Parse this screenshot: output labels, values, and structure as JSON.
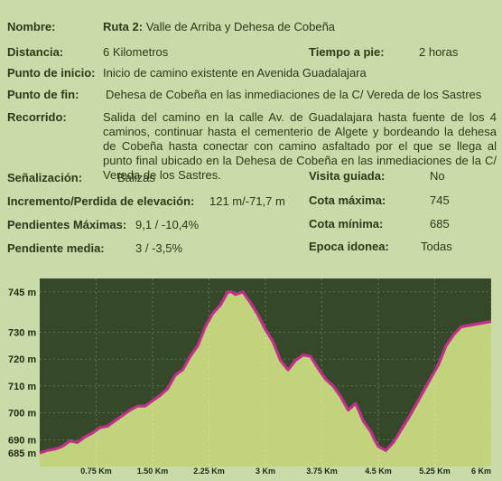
{
  "info": {
    "nombre_label": "Nombre:",
    "nombre_ruta": "Ruta 2:",
    "nombre_valor": "Valle de Arriba y Dehesa de Cobeña",
    "distancia_label": "Distancia:",
    "distancia_valor": "6 Kilometros",
    "tiempo_label": "Tiempo a pie:",
    "tiempo_valor": "2 horas",
    "inicio_label": "Punto de inicio:",
    "inicio_valor": "Inicio de camino existente en Avenida Guadalajara",
    "fin_label": "Punto de fin:",
    "fin_valor": "Dehesa de Cobeña en las inmediaciones de la C/ Vereda de los Sastres",
    "recorrido_label": "Recorrido:",
    "recorrido_valor": "Salida del camino en la calle Av. de Guadalajara hasta fuente de los 4 caminos, continuar hasta el cementerio de Algete y bordeando la dehesa de Cobeña hasta conectar con camino asfaltado por el que se llega al punto final ubicado en la Dehesa de Cobeña en las inmediaciones de la C/ Vereda de los Sastres.",
    "senal_label": "Señalización:",
    "senal_valor": "Balizas",
    "visita_label": "Visita guiada:",
    "visita_valor": "No",
    "incremento_label": "Incremento/Perdida de elevación:",
    "incremento_valor": "121 m/-71,7 m",
    "cota_max_label": "Cota máxima:",
    "cota_max_valor": "745",
    "pend_max_label": "Pendientes Máximas:",
    "pend_max_valor": "9,1 / -10,4%",
    "cota_min_label": "Cota mínima:",
    "cota_min_valor": "685",
    "pend_media_label": "Pendiente media:",
    "pend_media_valor": "3 / -3,5%",
    "epoca_label": "Epoca idonea:",
    "epoca_valor": "Todas"
  },
  "colors": {
    "background": "#c9dba8",
    "chart_dark": "#35482a",
    "chart_fill": "#c1d47c",
    "profile_line": "#c2308c"
  },
  "chart_data": {
    "type": "area",
    "xlabel": "",
    "ylabel": "",
    "x_ticks": [
      "0.75 Km",
      "1.50 Km",
      "2.25 Km",
      "3 Km",
      "3.75 Km",
      "4.5 Km",
      "5.25 Km",
      "6 Km"
    ],
    "y_ticks": [
      "745 m",
      "730 m",
      "720 m",
      "710 m",
      "700 m",
      "690 m",
      "685 m"
    ],
    "x": [
      0,
      0.1,
      0.2,
      0.3,
      0.4,
      0.5,
      0.6,
      0.7,
      0.8,
      0.9,
      1.0,
      1.1,
      1.2,
      1.3,
      1.4,
      1.5,
      1.6,
      1.7,
      1.8,
      1.9,
      2.0,
      2.1,
      2.2,
      2.3,
      2.4,
      2.5,
      2.55,
      2.6,
      2.7,
      2.75,
      2.8,
      2.9,
      3.0,
      3.1,
      3.2,
      3.3,
      3.4,
      3.5,
      3.6,
      3.7,
      3.8,
      3.9,
      4.0,
      4.1,
      4.2,
      4.3,
      4.4,
      4.45,
      4.5,
      4.6,
      4.7,
      4.8,
      4.9,
      5.0,
      5.1,
      5.2,
      5.3,
      5.4,
      5.5,
      5.6,
      5.7,
      5.8,
      5.9,
      6.0
    ],
    "values": [
      685,
      686,
      686.5,
      687.5,
      689.5,
      689,
      691,
      692.5,
      694.5,
      695,
      697,
      699,
      701,
      702.5,
      702.5,
      704.5,
      706.5,
      709,
      714,
      716,
      721,
      725,
      732,
      737,
      740,
      745,
      745,
      744,
      745,
      743,
      741,
      736.5,
      731,
      726.5,
      719.5,
      716,
      719.5,
      721.5,
      721,
      716.5,
      712.5,
      710,
      706,
      701,
      703.5,
      697,
      693,
      690,
      687.5,
      686,
      689,
      693.5,
      698,
      703,
      708,
      713,
      718,
      725,
      729,
      732,
      732.5,
      733,
      733.5,
      734
    ],
    "ylim": [
      680,
      750
    ],
    "xlim": [
      0,
      6
    ]
  }
}
